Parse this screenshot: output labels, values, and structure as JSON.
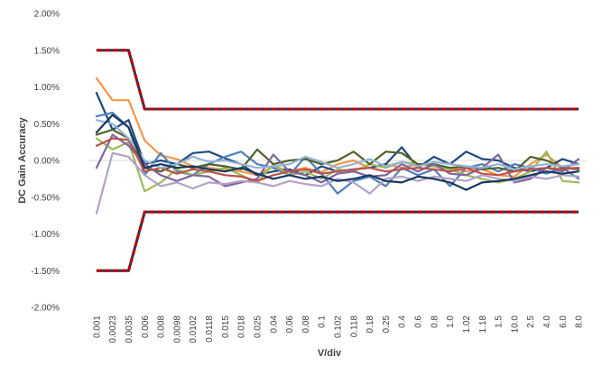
{
  "chart_data": {
    "type": "line",
    "title": "",
    "xlabel": "V/div",
    "ylabel": "DC Gain Accuracy",
    "y_unit": "percent",
    "ylim": [
      -2.0,
      2.0
    ],
    "y_ticks": [
      2.0,
      1.5,
      1.0,
      0.5,
      0.0,
      -0.5,
      -1.0,
      -1.5,
      -2.0
    ],
    "y_tick_labels": [
      "2.00%",
      "1.50%",
      "1.00%",
      "0.50%",
      "0.00%",
      "-0.50%",
      "-1.00%",
      "-1.50%",
      "-2.00%"
    ],
    "categories": [
      "0.001",
      "0.0023",
      "0.0035",
      "0.006",
      "0.008",
      "0.0098",
      "0.0102",
      "0.0118",
      "0.015",
      "0.018",
      "0.025",
      "0.04",
      "0.06",
      "0.08",
      "0.1",
      "0.102",
      "0.118",
      "0.18",
      "0.25",
      "0.4",
      "0.6",
      "0.8",
      "1.0",
      "1.02",
      "1.18",
      "1.5",
      "10.0",
      "2.5",
      "4.0",
      "6.0",
      "8.0"
    ],
    "grid": false,
    "legend": "none",
    "limit_lines": [
      {
        "role": "upper",
        "color": "#c00000",
        "values": [
          1.5,
          1.5,
          1.5,
          0.7,
          0.7,
          0.7,
          0.7,
          0.7,
          0.7,
          0.7,
          0.7,
          0.7,
          0.7,
          0.7,
          0.7,
          0.7,
          0.7,
          0.7,
          0.7,
          0.7,
          0.7,
          0.7,
          0.7,
          0.7,
          0.7,
          0.7,
          0.7,
          0.7,
          0.7,
          0.7,
          0.7
        ]
      },
      {
        "role": "lower",
        "color": "#c00000",
        "values": [
          -1.5,
          -1.5,
          -1.5,
          -0.7,
          -0.7,
          -0.7,
          -0.7,
          -0.7,
          -0.7,
          -0.7,
          -0.7,
          -0.7,
          -0.7,
          -0.7,
          -0.7,
          -0.7,
          -0.7,
          -0.7,
          -0.7,
          -0.7,
          -0.7,
          -0.7,
          -0.7,
          -0.7,
          -0.7,
          -0.7,
          -0.7,
          -0.7,
          -0.7,
          -0.7,
          -0.7
        ]
      }
    ],
    "series": [
      {
        "color": "#f79646",
        "values": [
          1.12,
          0.82,
          0.82,
          0.27,
          0.07,
          0.02,
          -0.08,
          -0.1,
          -0.12,
          -0.15,
          -0.2,
          -0.08,
          -0.14,
          -0.1,
          -0.16,
          -0.05,
          0.0,
          -0.1,
          -0.05,
          -0.1,
          -0.05,
          -0.08,
          -0.1,
          -0.15,
          -0.12,
          -0.2,
          -0.22,
          -0.05,
          0.08,
          -0.1,
          -0.1
        ]
      },
      {
        "color": "#1f497d",
        "values": [
          0.92,
          0.42,
          0.55,
          -0.05,
          0.0,
          -0.05,
          0.1,
          0.12,
          0.03,
          -0.05,
          -0.2,
          -0.15,
          -0.12,
          -0.2,
          -0.08,
          -0.15,
          -0.12,
          -0.1,
          -0.05,
          0.18,
          -0.1,
          0.05,
          -0.05,
          0.12,
          0.02,
          0.0,
          -0.1,
          -0.15,
          -0.1,
          0.02,
          -0.05
        ]
      },
      {
        "color": "#4f81bd",
        "values": [
          0.6,
          0.65,
          0.45,
          -0.2,
          0.1,
          -0.15,
          -0.2,
          -0.05,
          0.05,
          0.12,
          -0.05,
          -0.1,
          -0.2,
          0.05,
          -0.18,
          -0.45,
          -0.28,
          -0.22,
          -0.35,
          -0.1,
          -0.2,
          -0.12,
          -0.35,
          -0.1,
          -0.05,
          -0.15,
          -0.05,
          -0.1,
          -0.18,
          -0.1,
          -0.25
        ]
      },
      {
        "color": "#9bbb59",
        "values": [
          0.3,
          0.15,
          0.25,
          -0.42,
          -0.3,
          -0.12,
          -0.2,
          -0.15,
          -0.1,
          -0.2,
          -0.3,
          -0.05,
          -0.2,
          -0.15,
          -0.25,
          -0.12,
          -0.15,
          -0.05,
          -0.1,
          -0.02,
          -0.05,
          -0.08,
          -0.12,
          -0.2,
          -0.25,
          -0.3,
          -0.25,
          -0.15,
          0.12,
          -0.28,
          -0.3
        ]
      },
      {
        "color": "#4f6228",
        "values": [
          0.35,
          0.42,
          0.3,
          -0.1,
          -0.15,
          -0.05,
          -0.1,
          -0.05,
          -0.08,
          -0.12,
          0.15,
          -0.05,
          0.0,
          0.02,
          -0.05,
          0.0,
          0.12,
          -0.05,
          0.12,
          0.1,
          -0.05,
          -0.05,
          -0.1,
          -0.08,
          -0.12,
          -0.1,
          -0.15,
          0.05,
          0.0,
          -0.1,
          -0.12
        ]
      },
      {
        "color": "#8064a2",
        "values": [
          -0.1,
          0.35,
          0.2,
          -0.05,
          -0.2,
          -0.28,
          -0.2,
          -0.22,
          -0.35,
          -0.3,
          -0.25,
          0.08,
          -0.15,
          -0.2,
          -0.3,
          -0.18,
          -0.15,
          -0.22,
          -0.2,
          -0.05,
          -0.15,
          -0.05,
          -0.18,
          -0.2,
          -0.1,
          0.08,
          -0.3,
          -0.25,
          -0.1,
          -0.15,
          0.02
        ]
      },
      {
        "color": "#c0504d",
        "values": [
          0.2,
          0.3,
          0.28,
          -0.15,
          -0.1,
          -0.18,
          -0.12,
          -0.15,
          -0.2,
          -0.22,
          -0.28,
          -0.2,
          -0.15,
          -0.12,
          -0.18,
          -0.15,
          -0.12,
          -0.1,
          -0.15,
          -0.12,
          -0.1,
          -0.12,
          -0.15,
          -0.1,
          -0.18,
          -0.2,
          -0.15,
          -0.12,
          -0.1,
          -0.12,
          -0.1
        ]
      },
      {
        "color": "#b3a2c7",
        "values": [
          -0.72,
          0.1,
          0.05,
          -0.2,
          -0.35,
          -0.3,
          -0.38,
          -0.3,
          -0.32,
          -0.28,
          -0.3,
          -0.35,
          -0.28,
          -0.32,
          -0.35,
          -0.25,
          -0.3,
          -0.45,
          -0.25,
          -0.22,
          -0.28,
          -0.22,
          -0.25,
          -0.28,
          -0.2,
          -0.25,
          -0.28,
          -0.22,
          -0.25,
          -0.2,
          -0.22
        ]
      },
      {
        "color": "#95b3d7",
        "values": [
          0.55,
          0.5,
          0.3,
          0.0,
          -0.1,
          -0.05,
          0.05,
          -0.02,
          0.0,
          -0.05,
          -0.1,
          -0.08,
          -0.05,
          0.05,
          -0.02,
          -0.1,
          -0.05,
          0.02,
          -0.08,
          -0.02,
          -0.08,
          -0.02,
          -0.05,
          -0.08,
          -0.1,
          -0.05,
          -0.12,
          -0.08,
          -0.05,
          -0.08,
          -0.05
        ]
      },
      {
        "color": "#17375e",
        "values": [
          0.38,
          0.62,
          0.45,
          -0.1,
          -0.05,
          -0.1,
          -0.08,
          -0.12,
          -0.15,
          -0.1,
          -0.18,
          -0.25,
          -0.2,
          -0.25,
          -0.22,
          -0.28,
          -0.25,
          -0.2,
          -0.28,
          -0.3,
          -0.22,
          -0.25,
          -0.3,
          -0.4,
          -0.3,
          -0.28,
          -0.25,
          -0.2,
          -0.15,
          -0.18,
          -0.15
        ]
      }
    ]
  }
}
